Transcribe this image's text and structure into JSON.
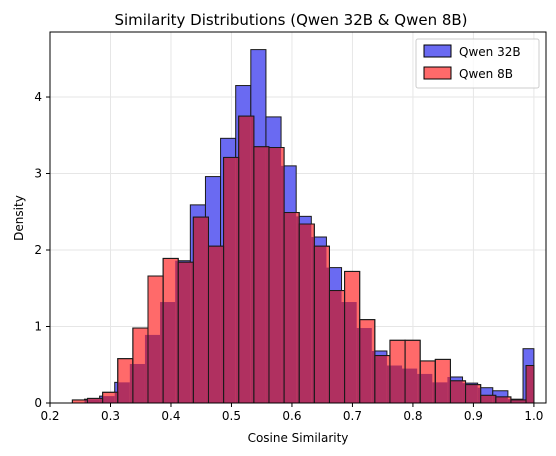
{
  "chart_data": {
    "type": "histogram",
    "title": "Similarity Distributions (Qwen 32B & Qwen 8B)",
    "xlabel": "Cosine Similarity",
    "ylabel": "Density",
    "xlim": [
      0.2,
      1.02
    ],
    "ylim": [
      0,
      4.85
    ],
    "xticks": [
      "0.2",
      "0.3",
      "0.4",
      "0.5",
      "0.6",
      "0.7",
      "0.8",
      "0.9",
      "1.0"
    ],
    "yticks": [
      "0",
      "1",
      "2",
      "3",
      "4"
    ],
    "grid": true,
    "legend_position": "top-right",
    "series": [
      {
        "name": "Qwen 32B",
        "color": "#6a6af2",
        "bins": [
          {
            "x0": 0.257,
            "x1": 0.282,
            "value": 0.05
          },
          {
            "x0": 0.282,
            "x1": 0.307,
            "value": 0.09
          },
          {
            "x0": 0.307,
            "x1": 0.332,
            "value": 0.27
          },
          {
            "x0": 0.332,
            "x1": 0.357,
            "value": 0.51
          },
          {
            "x0": 0.357,
            "x1": 0.382,
            "value": 0.89
          },
          {
            "x0": 0.382,
            "x1": 0.407,
            "value": 1.32
          },
          {
            "x0": 0.407,
            "x1": 0.432,
            "value": 1.86
          },
          {
            "x0": 0.432,
            "x1": 0.457,
            "value": 2.59
          },
          {
            "x0": 0.457,
            "x1": 0.482,
            "value": 2.96
          },
          {
            "x0": 0.482,
            "x1": 0.507,
            "value": 3.46
          },
          {
            "x0": 0.507,
            "x1": 0.532,
            "value": 4.15
          },
          {
            "x0": 0.532,
            "x1": 0.557,
            "value": 4.62
          },
          {
            "x0": 0.557,
            "x1": 0.582,
            "value": 3.74
          },
          {
            "x0": 0.582,
            "x1": 0.607,
            "value": 3.1
          },
          {
            "x0": 0.607,
            "x1": 0.632,
            "value": 2.44
          },
          {
            "x0": 0.632,
            "x1": 0.657,
            "value": 2.17
          },
          {
            "x0": 0.657,
            "x1": 0.682,
            "value": 1.77
          },
          {
            "x0": 0.682,
            "x1": 0.707,
            "value": 1.32
          },
          {
            "x0": 0.707,
            "x1": 0.732,
            "value": 0.98
          },
          {
            "x0": 0.732,
            "x1": 0.757,
            "value": 0.68
          },
          {
            "x0": 0.757,
            "x1": 0.782,
            "value": 0.49
          },
          {
            "x0": 0.782,
            "x1": 0.807,
            "value": 0.45
          },
          {
            "x0": 0.807,
            "x1": 0.832,
            "value": 0.38
          },
          {
            "x0": 0.832,
            "x1": 0.857,
            "value": 0.27
          },
          {
            "x0": 0.857,
            "x1": 0.882,
            "value": 0.34
          },
          {
            "x0": 0.882,
            "x1": 0.907,
            "value": 0.26
          },
          {
            "x0": 0.907,
            "x1": 0.932,
            "value": 0.2
          },
          {
            "x0": 0.932,
            "x1": 0.957,
            "value": 0.16
          },
          {
            "x0": 0.957,
            "x1": 0.982,
            "value": 0.05
          },
          {
            "x0": 0.982,
            "x1": 1.0,
            "value": 0.71
          }
        ]
      },
      {
        "name": "Qwen 8B",
        "color": "#ff6a6a",
        "bins": [
          {
            "x0": 0.237,
            "x1": 0.262,
            "value": 0.04
          },
          {
            "x0": 0.262,
            "x1": 0.287,
            "value": 0.06
          },
          {
            "x0": 0.287,
            "x1": 0.312,
            "value": 0.14
          },
          {
            "x0": 0.312,
            "x1": 0.337,
            "value": 0.58
          },
          {
            "x0": 0.337,
            "x1": 0.362,
            "value": 0.98
          },
          {
            "x0": 0.362,
            "x1": 0.387,
            "value": 1.66
          },
          {
            "x0": 0.387,
            "x1": 0.412,
            "value": 1.89
          },
          {
            "x0": 0.412,
            "x1": 0.437,
            "value": 1.84
          },
          {
            "x0": 0.437,
            "x1": 0.462,
            "value": 2.43
          },
          {
            "x0": 0.462,
            "x1": 0.487,
            "value": 2.05
          },
          {
            "x0": 0.487,
            "x1": 0.512,
            "value": 3.21
          },
          {
            "x0": 0.512,
            "x1": 0.537,
            "value": 3.75
          },
          {
            "x0": 0.537,
            "x1": 0.562,
            "value": 3.35
          },
          {
            "x0": 0.562,
            "x1": 0.587,
            "value": 3.34
          },
          {
            "x0": 0.587,
            "x1": 0.612,
            "value": 2.49
          },
          {
            "x0": 0.612,
            "x1": 0.637,
            "value": 2.34
          },
          {
            "x0": 0.637,
            "x1": 0.662,
            "value": 2.05
          },
          {
            "x0": 0.662,
            "x1": 0.687,
            "value": 1.47
          },
          {
            "x0": 0.687,
            "x1": 0.712,
            "value": 1.72
          },
          {
            "x0": 0.712,
            "x1": 0.737,
            "value": 1.09
          },
          {
            "x0": 0.737,
            "x1": 0.762,
            "value": 0.62
          },
          {
            "x0": 0.762,
            "x1": 0.787,
            "value": 0.82
          },
          {
            "x0": 0.787,
            "x1": 0.812,
            "value": 0.82
          },
          {
            "x0": 0.812,
            "x1": 0.837,
            "value": 0.55
          },
          {
            "x0": 0.837,
            "x1": 0.862,
            "value": 0.57
          },
          {
            "x0": 0.862,
            "x1": 0.887,
            "value": 0.29
          },
          {
            "x0": 0.887,
            "x1": 0.912,
            "value": 0.24
          },
          {
            "x0": 0.912,
            "x1": 0.937,
            "value": 0.1
          },
          {
            "x0": 0.937,
            "x1": 0.962,
            "value": 0.08
          },
          {
            "x0": 0.962,
            "x1": 0.987,
            "value": 0.04
          },
          {
            "x0": 0.987,
            "x1": 1.0,
            "value": 0.49
          }
        ]
      }
    ],
    "overlap_color": "#b03060"
  }
}
